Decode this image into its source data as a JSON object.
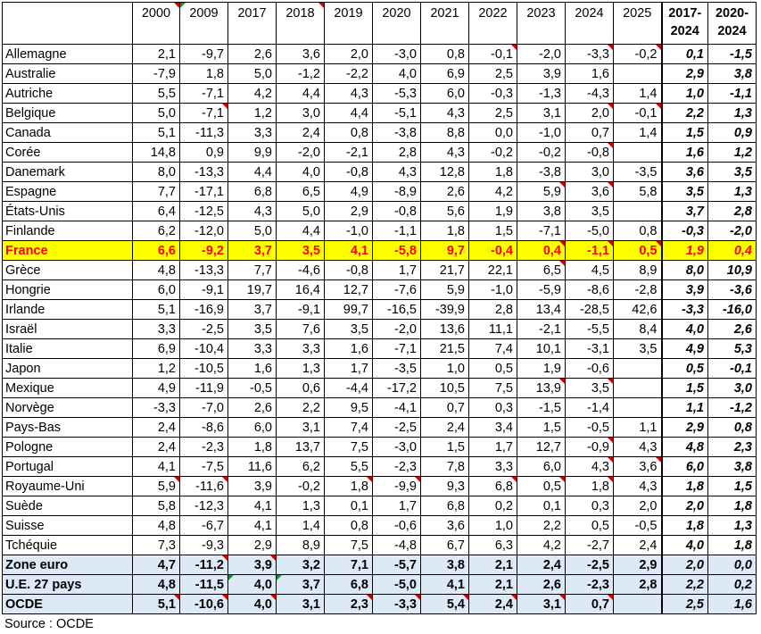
{
  "headers": [
    "",
    "2000",
    "2009",
    "2017",
    "2018",
    "2019",
    "2020",
    "2021",
    "2022",
    "2023",
    "2024",
    "2025",
    "2017-\n2024",
    "2020-\n2024"
  ],
  "rows": [
    {
      "name": "Allemagne",
      "values": [
        "2,1",
        "-9,7",
        "2,6",
        "3,6",
        "2,0",
        "-3,0",
        "0,8",
        "-0,1",
        "-2,0",
        "-3,3",
        "-0,2",
        "0,1",
        "-1,5"
      ]
    },
    {
      "name": "Australie",
      "values": [
        "-7,9",
        "1,8",
        "5,0",
        "-1,2",
        "-2,2",
        "4,0",
        "6,9",
        "2,5",
        "3,9",
        "1,6",
        "",
        "2,9",
        "3,8"
      ]
    },
    {
      "name": "Autriche",
      "values": [
        "5,5",
        "-7,1",
        "4,2",
        "4,4",
        "4,3",
        "-5,3",
        "6,0",
        "-0,3",
        "-1,3",
        "-4,3",
        "1,4",
        "1,0",
        "-1,1"
      ]
    },
    {
      "name": "Belgique",
      "values": [
        "5,0",
        "-7,1",
        "1,2",
        "3,0",
        "4,4",
        "-5,1",
        "4,3",
        "2,5",
        "3,1",
        "2,0",
        "-0,1",
        "2,2",
        "1,3"
      ]
    },
    {
      "name": "Canada",
      "values": [
        "5,1",
        "-11,3",
        "3,3",
        "2,4",
        "0,8",
        "-3,8",
        "8,8",
        "0,0",
        "-1,0",
        "0,7",
        "1,4",
        "1,5",
        "0,9"
      ]
    },
    {
      "name": "Corée",
      "values": [
        "14,8",
        "0,9",
        "9,9",
        "-2,0",
        "-2,1",
        "2,8",
        "4,3",
        "-0,2",
        "-0,2",
        "-0,8",
        "",
        "1,6",
        "1,2"
      ]
    },
    {
      "name": "Danemark",
      "values": [
        "8,0",
        "-13,3",
        "4,4",
        "4,0",
        "-0,8",
        "4,3",
        "12,8",
        "1,8",
        "-3,8",
        "3,0",
        "-3,5",
        "3,6",
        "3,5"
      ]
    },
    {
      "name": "Espagne",
      "values": [
        "7,7",
        "-17,1",
        "6,8",
        "6,5",
        "4,9",
        "-8,9",
        "2,6",
        "4,2",
        "5,9",
        "3,6",
        "5,8",
        "3,5",
        "1,3"
      ]
    },
    {
      "name": "États-Unis",
      "values": [
        "6,4",
        "-12,5",
        "4,3",
        "5,0",
        "2,9",
        "-0,8",
        "5,6",
        "1,9",
        "3,8",
        "3,5",
        "",
        "3,7",
        "2,8"
      ]
    },
    {
      "name": "Finlande",
      "values": [
        "6,2",
        "-12,0",
        "5,0",
        "4,4",
        "-1,0",
        "-1,1",
        "1,8",
        "1,5",
        "-7,1",
        "-5,0",
        "0,8",
        "-0,3",
        "-2,0"
      ]
    },
    {
      "name": "France",
      "values": [
        "6,6",
        "-9,2",
        "3,7",
        "3,5",
        "4,1",
        "-5,8",
        "9,7",
        "-0,4",
        "0,4",
        "-1,1",
        "0,5",
        "1,9",
        "0,4"
      ]
    },
    {
      "name": "Grèce",
      "values": [
        "4,8",
        "-13,3",
        "7,7",
        "-4,6",
        "-0,8",
        "1,7",
        "21,7",
        "22,1",
        "6,5",
        "4,5",
        "8,9",
        "8,0",
        "10,9"
      ]
    },
    {
      "name": "Hongrie",
      "values": [
        "6,0",
        "-9,1",
        "19,7",
        "16,4",
        "12,7",
        "-7,6",
        "5,9",
        "-1,0",
        "-5,9",
        "-8,6",
        "-2,8",
        "3,9",
        "-3,6"
      ]
    },
    {
      "name": "Irlande",
      "values": [
        "5,1",
        "-16,9",
        "3,7",
        "-9,1",
        "99,7",
        "-16,5",
        "-39,9",
        "2,8",
        "13,4",
        "-28,5",
        "42,6",
        "-3,3",
        "-16,0"
      ]
    },
    {
      "name": "Israël",
      "values": [
        "3,3",
        "-2,5",
        "3,5",
        "7,6",
        "3,5",
        "-2,0",
        "13,6",
        "11,1",
        "-2,1",
        "-5,5",
        "8,4",
        "4,0",
        "2,6"
      ]
    },
    {
      "name": "Italie",
      "values": [
        "6,9",
        "-10,4",
        "3,3",
        "3,3",
        "1,6",
        "-7,1",
        "21,5",
        "7,4",
        "10,1",
        "-3,1",
        "3,5",
        "4,9",
        "5,3"
      ]
    },
    {
      "name": "Japon",
      "values": [
        "1,2",
        "-10,5",
        "1,6",
        "1,3",
        "1,7",
        "-3,5",
        "1,0",
        "0,5",
        "1,9",
        "-0,6",
        "",
        "0,5",
        "-0,1"
      ]
    },
    {
      "name": "Mexique",
      "values": [
        "4,9",
        "-11,9",
        "-0,5",
        "0,6",
        "-4,4",
        "-17,2",
        "10,5",
        "7,5",
        "13,9",
        "3,5",
        "",
        "1,5",
        "3,0"
      ]
    },
    {
      "name": "Norvège",
      "values": [
        "-3,3",
        "-7,0",
        "2,6",
        "2,2",
        "9,5",
        "-4,1",
        "0,7",
        "0,3",
        "-1,5",
        "-1,4",
        "",
        "1,1",
        "-1,2"
      ]
    },
    {
      "name": "Pays-Bas",
      "values": [
        "2,4",
        "-8,6",
        "6,0",
        "3,1",
        "7,4",
        "-2,5",
        "2,4",
        "3,4",
        "1,5",
        "-0,5",
        "1,1",
        "2,9",
        "0,8"
      ]
    },
    {
      "name": "Pologne",
      "values": [
        "2,4",
        "-2,3",
        "1,8",
        "13,7",
        "7,5",
        "-3,0",
        "1,5",
        "1,7",
        "12,7",
        "-0,9",
        "4,3",
        "4,8",
        "2,3"
      ]
    },
    {
      "name": "Portugal",
      "values": [
        "4,1",
        "-7,5",
        "11,6",
        "6,2",
        "5,5",
        "-2,3",
        "7,8",
        "3,3",
        "6,0",
        "4,3",
        "3,6",
        "6,0",
        "3,8"
      ]
    },
    {
      "name": "Royaume-Uni",
      "values": [
        "5,9",
        "-11,6",
        "3,9",
        "-0,2",
        "1,8",
        "-9,9",
        "9,3",
        "6,8",
        "0,5",
        "1,8",
        "4,3",
        "1,8",
        "1,5"
      ]
    },
    {
      "name": "Suède",
      "values": [
        "5,8",
        "-12,3",
        "4,1",
        "1,3",
        "0,1",
        "1,7",
        "6,8",
        "0,2",
        "0,1",
        "0,3",
        "2,0",
        "2,0",
        "1,8"
      ]
    },
    {
      "name": "Suisse",
      "values": [
        "4,8",
        "-6,7",
        "4,1",
        "1,4",
        "0,8",
        "-0,6",
        "3,6",
        "1,0",
        "2,2",
        "0,5",
        "-0,5",
        "1,8",
        "1,3"
      ]
    },
    {
      "name": "Tchéquie",
      "values": [
        "7,3",
        "-9,3",
        "2,9",
        "8,9",
        "7,5",
        "-4,8",
        "6,7",
        "6,3",
        "4,2",
        "-2,7",
        "2,4",
        "4,0",
        "1,8"
      ]
    },
    {
      "name": "Zone euro",
      "values": [
        "4,7",
        "-11,2",
        "3,9",
        "3,2",
        "7,1",
        "-5,7",
        "3,8",
        "2,1",
        "2,4",
        "-2,5",
        "2,9",
        "2,0",
        "0,0"
      ]
    },
    {
      "name": "U.E. 27 pays",
      "values": [
        "4,8",
        "-11,5",
        "4,0",
        "3,7",
        "6,8",
        "-5,0",
        "4,1",
        "2,1",
        "2,6",
        "-2,3",
        "2,8",
        "2,2",
        "0,2"
      ]
    },
    {
      "name": "OCDE",
      "values": [
        "5,1",
        "-10,6",
        "4,0",
        "3,1",
        "2,3",
        "-3,3",
        "5,4",
        "2,4",
        "3,1",
        "0,7",
        "",
        "2,5",
        "1,6"
      ]
    }
  ],
  "source": "Source : OCDE",
  "colors": {
    "france_bg": "#ffff00",
    "france_text": "#ff0000",
    "aggregate_bg": "#dde9f5",
    "comment_marker": "#d40000",
    "note_marker": "#1a8a3a"
  }
}
